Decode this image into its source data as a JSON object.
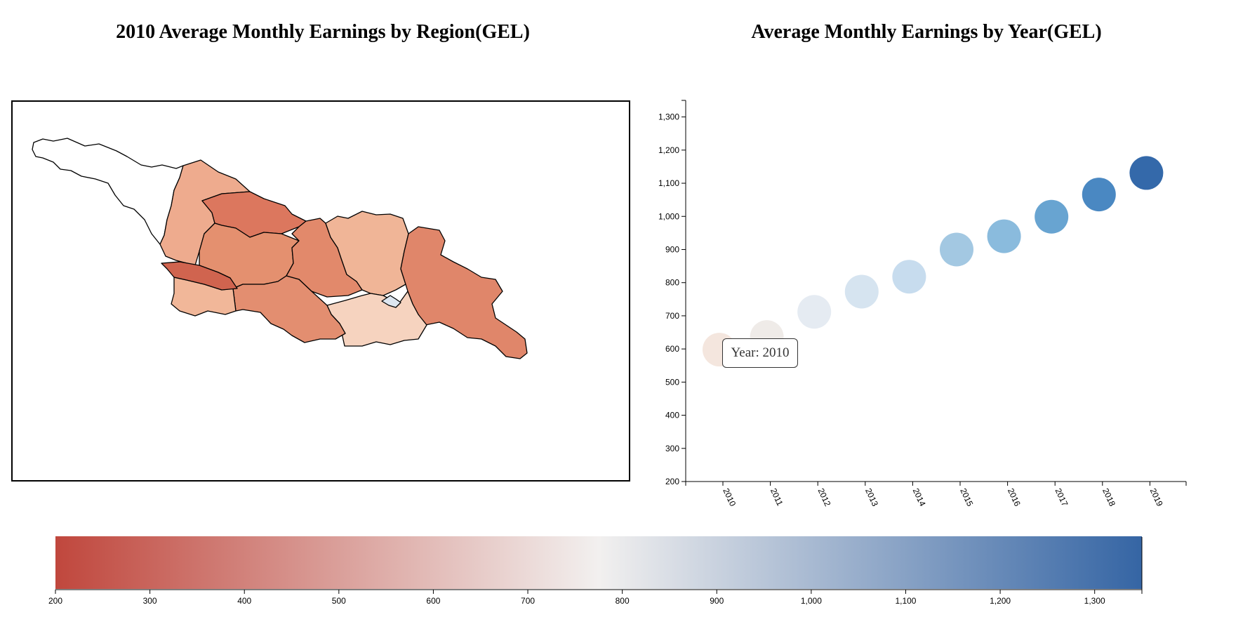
{
  "titles": {
    "map": "2010 Average Monthly Earnings by Region(GEL)",
    "scatter": "Average Monthly Earnings by Year(GEL)"
  },
  "tooltip": {
    "text": "Year: 2010"
  },
  "colors": {
    "scale_low": "#c0473d",
    "scale_mid": "#f2f0ef",
    "scale_high": "#3565a4",
    "region_outline": "#000000"
  },
  "map": {
    "regions": [
      {
        "id": "abkhazia",
        "fill": "#ffffff"
      },
      {
        "id": "samegrelo",
        "fill": "#eeab8e"
      },
      {
        "id": "racha",
        "fill": "#dc775e"
      },
      {
        "id": "imereti",
        "fill": "#e4906f"
      },
      {
        "id": "shida-kartli",
        "fill": "#e2896b"
      },
      {
        "id": "mtskheta",
        "fill": "#f0b597"
      },
      {
        "id": "kakheti",
        "fill": "#e0866a"
      },
      {
        "id": "kvemo-kartli",
        "fill": "#f6d3bf"
      },
      {
        "id": "samtskhe",
        "fill": "#e38e70"
      },
      {
        "id": "adjara",
        "fill": "#f1b799"
      },
      {
        "id": "guria",
        "fill": "#d0644f"
      },
      {
        "id": "tbilisi",
        "fill": "#dde6f0"
      }
    ]
  },
  "chart_data": [
    {
      "type": "scatter",
      "title": "Average Monthly Earnings by Year(GEL)",
      "x": [
        "2010",
        "2011",
        "2012",
        "2013",
        "2014",
        "2015",
        "2016",
        "2017",
        "2018",
        "2019"
      ],
      "values": [
        598,
        636,
        712,
        773,
        818,
        900,
        940,
        999,
        1066,
        1131
      ],
      "ylim": [
        200,
        1350
      ],
      "yticks": [
        200,
        300,
        400,
        500,
        600,
        700,
        800,
        900,
        1000,
        1100,
        1200,
        1300
      ],
      "ytick_labels": [
        "200",
        "300",
        "400",
        "500",
        "600",
        "700",
        "800",
        "900",
        "1,000",
        "1,100",
        "1,200",
        "1,300"
      ],
      "xlabel": "",
      "ylabel": "",
      "grid": false,
      "point_colors": [
        "#f4e6de",
        "#efebe8",
        "#e5ebf2",
        "#d6e4f0",
        "#c7dcee",
        "#a3c8e2",
        "#8abbdd",
        "#68a4d1",
        "#4a88c2",
        "#3469aa"
      ]
    },
    {
      "type": "heatmap",
      "title": "",
      "scale_min": 200,
      "scale_max": 1350,
      "ticks": [
        200,
        300,
        400,
        500,
        600,
        700,
        800,
        900,
        1000,
        1100,
        1200,
        1300
      ],
      "tick_labels": [
        "200",
        "300",
        "400",
        "500",
        "600",
        "700",
        "800",
        "900",
        "1,000",
        "1,100",
        "1,200",
        "1,300"
      ]
    }
  ]
}
